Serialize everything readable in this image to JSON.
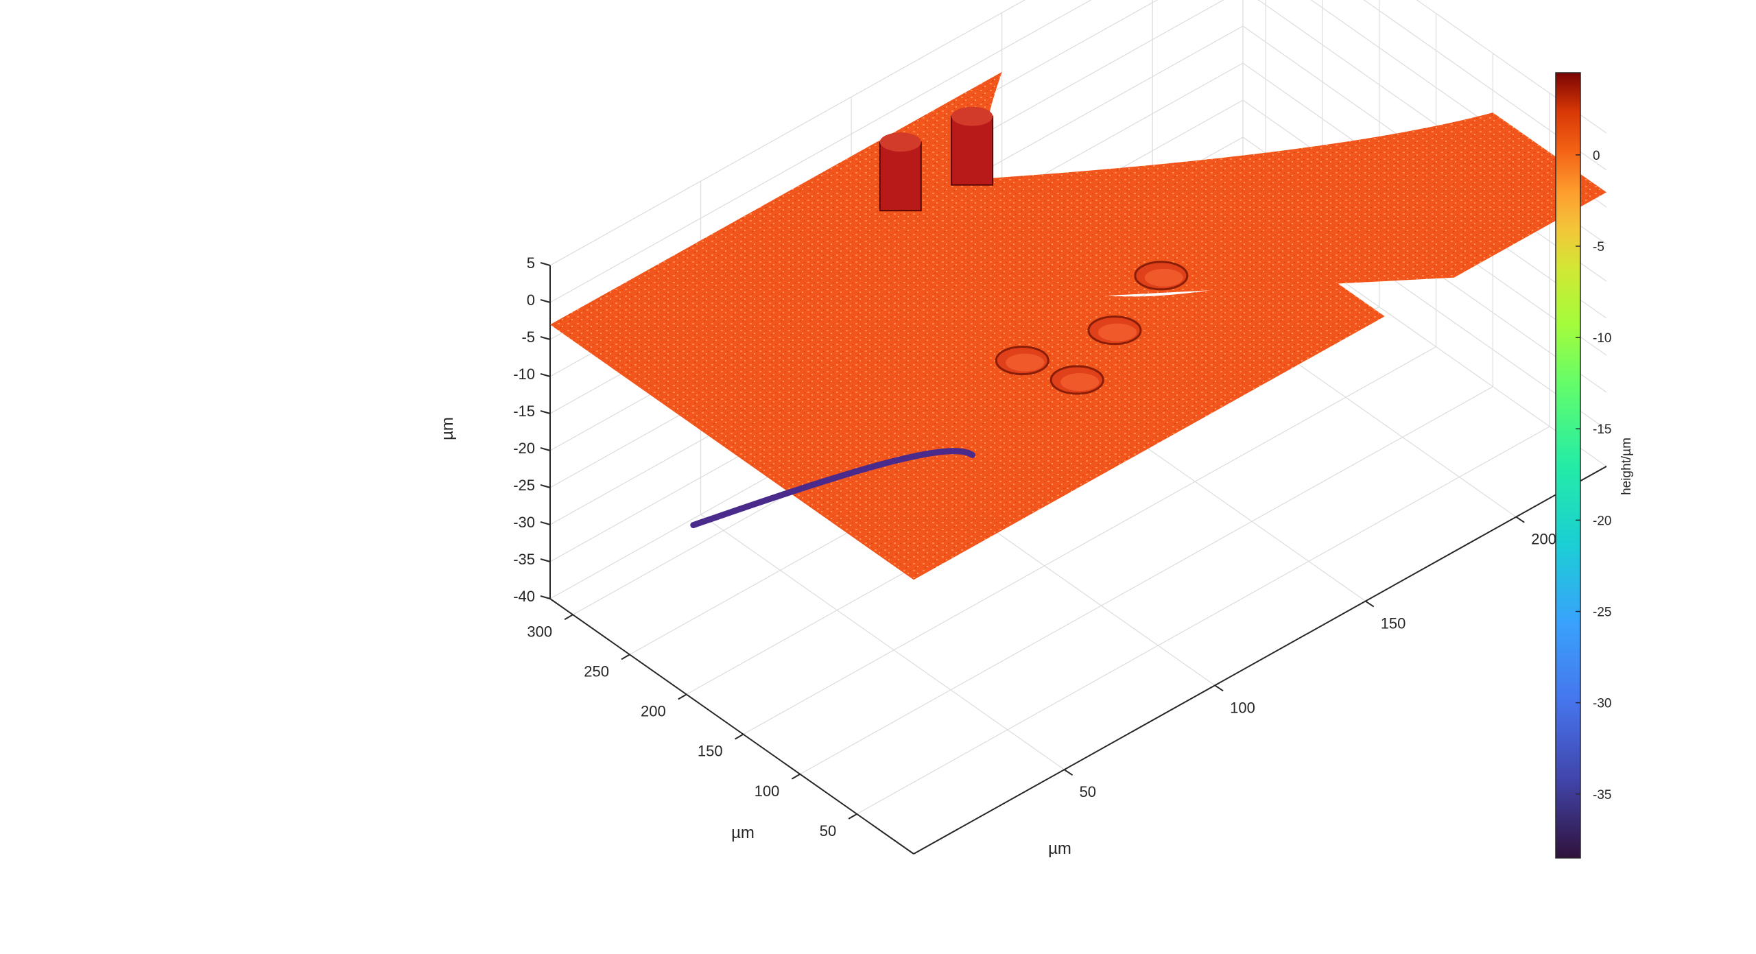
{
  "chart_data": {
    "type": "surface",
    "title": "",
    "xlabel": "µm",
    "ylabel": "µm",
    "zlabel": "µm",
    "x_ticks": [
      50,
      100,
      150,
      200,
      250,
      300
    ],
    "y_ticks": [
      50,
      100,
      150,
      200
    ],
    "z_ticks": [
      5,
      0,
      -5,
      -10,
      -15,
      -20,
      -25,
      -30,
      -35,
      -40
    ],
    "x_tick_labels": [
      "50",
      "100",
      "150",
      "200",
      "250",
      "300"
    ],
    "y_tick_labels": [
      "50",
      "100",
      "150",
      "200"
    ],
    "z_tick_labels": [
      "5",
      "0",
      "-5",
      "-10",
      "-15",
      "-20",
      "-25",
      "-30",
      "-35",
      "-40"
    ],
    "xlim": [
      0,
      320
    ],
    "ylim": [
      0,
      230
    ],
    "zlim": [
      -40,
      5
    ],
    "grid": true,
    "colormap": "turbo",
    "colorbar": {
      "label": "height/µm",
      "range": [
        -38.5,
        4.5
      ],
      "ticks": [
        0,
        -5,
        -10,
        -15,
        -20,
        -25,
        -30,
        -35
      ],
      "tick_labels": [
        "0",
        "-5",
        "-10",
        "-15",
        "-20",
        "-25",
        "-30",
        "-35"
      ]
    },
    "surface": {
      "plateau_height": -3,
      "pits": [
        {
          "name": "pit-1",
          "height": 1
        },
        {
          "name": "pit-2",
          "height": 1
        },
        {
          "name": "pit-3",
          "height": 1
        },
        {
          "name": "pit-4",
          "height": 1
        }
      ],
      "pillar_top_height": 1,
      "deep_floor_height": -37
    },
    "colors": {
      "plateau": "#f2561c",
      "plateau_light": "#ff8a3d",
      "pillar": "#b81a1a",
      "floor": "#4a2b8c",
      "axis": "#262626",
      "grid": "#dcdcdc"
    }
  }
}
